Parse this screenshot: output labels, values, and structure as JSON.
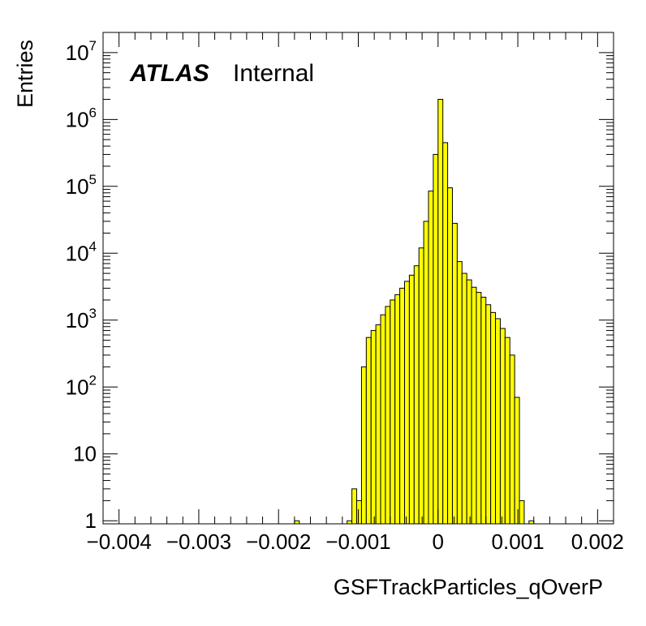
{
  "chart_data": {
    "type": "bar",
    "xlabel": "GSFTrackParticles_qOverP",
    "ylabel": "Entries",
    "annotation": {
      "experiment": "ATLAS",
      "status": "Internal"
    },
    "xlim": [
      -0.0042,
      0.0022
    ],
    "ylim": [
      0.9,
      20000000
    ],
    "yscale": "log",
    "grid": false,
    "fill_color": "#ffff00",
    "line_color": "#000000",
    "x_tick_labels": [
      "−0.004",
      "−0.003",
      "−0.002",
      "−0.001",
      "0",
      "0.001",
      "0.002"
    ],
    "x_tick_values": [
      -0.004,
      -0.003,
      -0.002,
      -0.001,
      0,
      0.001,
      0.002
    ],
    "y_tick_labels": [
      {
        "value": 1,
        "base": "1",
        "exp": ""
      },
      {
        "value": 10,
        "base": "10",
        "exp": ""
      },
      {
        "value": 100,
        "base": "10",
        "exp": "2"
      },
      {
        "value": 1000,
        "base": "10",
        "exp": "3"
      },
      {
        "value": 10000,
        "base": "10",
        "exp": "4"
      },
      {
        "value": 100000,
        "base": "10",
        "exp": "5"
      },
      {
        "value": 1000000,
        "base": "10",
        "exp": "6"
      },
      {
        "value": 10000000,
        "base": "10",
        "exp": "7"
      }
    ],
    "bin_width": 6e-05,
    "bins": [
      {
        "x0": -0.0018,
        "y": 1
      },
      {
        "x0": -0.00114,
        "y": 1
      },
      {
        "x0": -0.00108,
        "y": 3
      },
      {
        "x0": -0.00102,
        "y": 2
      },
      {
        "x0": -0.00096,
        "y": 200
      },
      {
        "x0": -0.0009,
        "y": 550
      },
      {
        "x0": -0.00084,
        "y": 700
      },
      {
        "x0": -0.00078,
        "y": 850
      },
      {
        "x0": -0.00072,
        "y": 1200
      },
      {
        "x0": -0.00066,
        "y": 1600
      },
      {
        "x0": -0.0006,
        "y": 2000
      },
      {
        "x0": -0.00054,
        "y": 2400
      },
      {
        "x0": -0.00048,
        "y": 3000
      },
      {
        "x0": -0.00042,
        "y": 3800
      },
      {
        "x0": -0.00036,
        "y": 4700
      },
      {
        "x0": -0.0003,
        "y": 6500
      },
      {
        "x0": -0.00024,
        "y": 12000
      },
      {
        "x0": -0.00018,
        "y": 30000
      },
      {
        "x0": -0.00012,
        "y": 85000
      },
      {
        "x0": -6e-05,
        "y": 300000
      },
      {
        "x0": 0.0,
        "y": 2000000
      },
      {
        "x0": 6e-05,
        "y": 450000
      },
      {
        "x0": 0.00012,
        "y": 95000
      },
      {
        "x0": 0.00018,
        "y": 28000
      },
      {
        "x0": 0.00024,
        "y": 7500
      },
      {
        "x0": 0.0003,
        "y": 5000
      },
      {
        "x0": 0.00036,
        "y": 4000
      },
      {
        "x0": 0.00042,
        "y": 3100
      },
      {
        "x0": 0.00048,
        "y": 2600
      },
      {
        "x0": 0.00054,
        "y": 2200
      },
      {
        "x0": 0.0006,
        "y": 1700
      },
      {
        "x0": 0.00066,
        "y": 1300
      },
      {
        "x0": 0.00072,
        "y": 1050
      },
      {
        "x0": 0.00078,
        "y": 750
      },
      {
        "x0": 0.00084,
        "y": 550
      },
      {
        "x0": 0.0009,
        "y": 300
      },
      {
        "x0": 0.00096,
        "y": 70
      },
      {
        "x0": 0.00102,
        "y": 2
      },
      {
        "x0": 0.00114,
        "y": 1
      }
    ]
  }
}
